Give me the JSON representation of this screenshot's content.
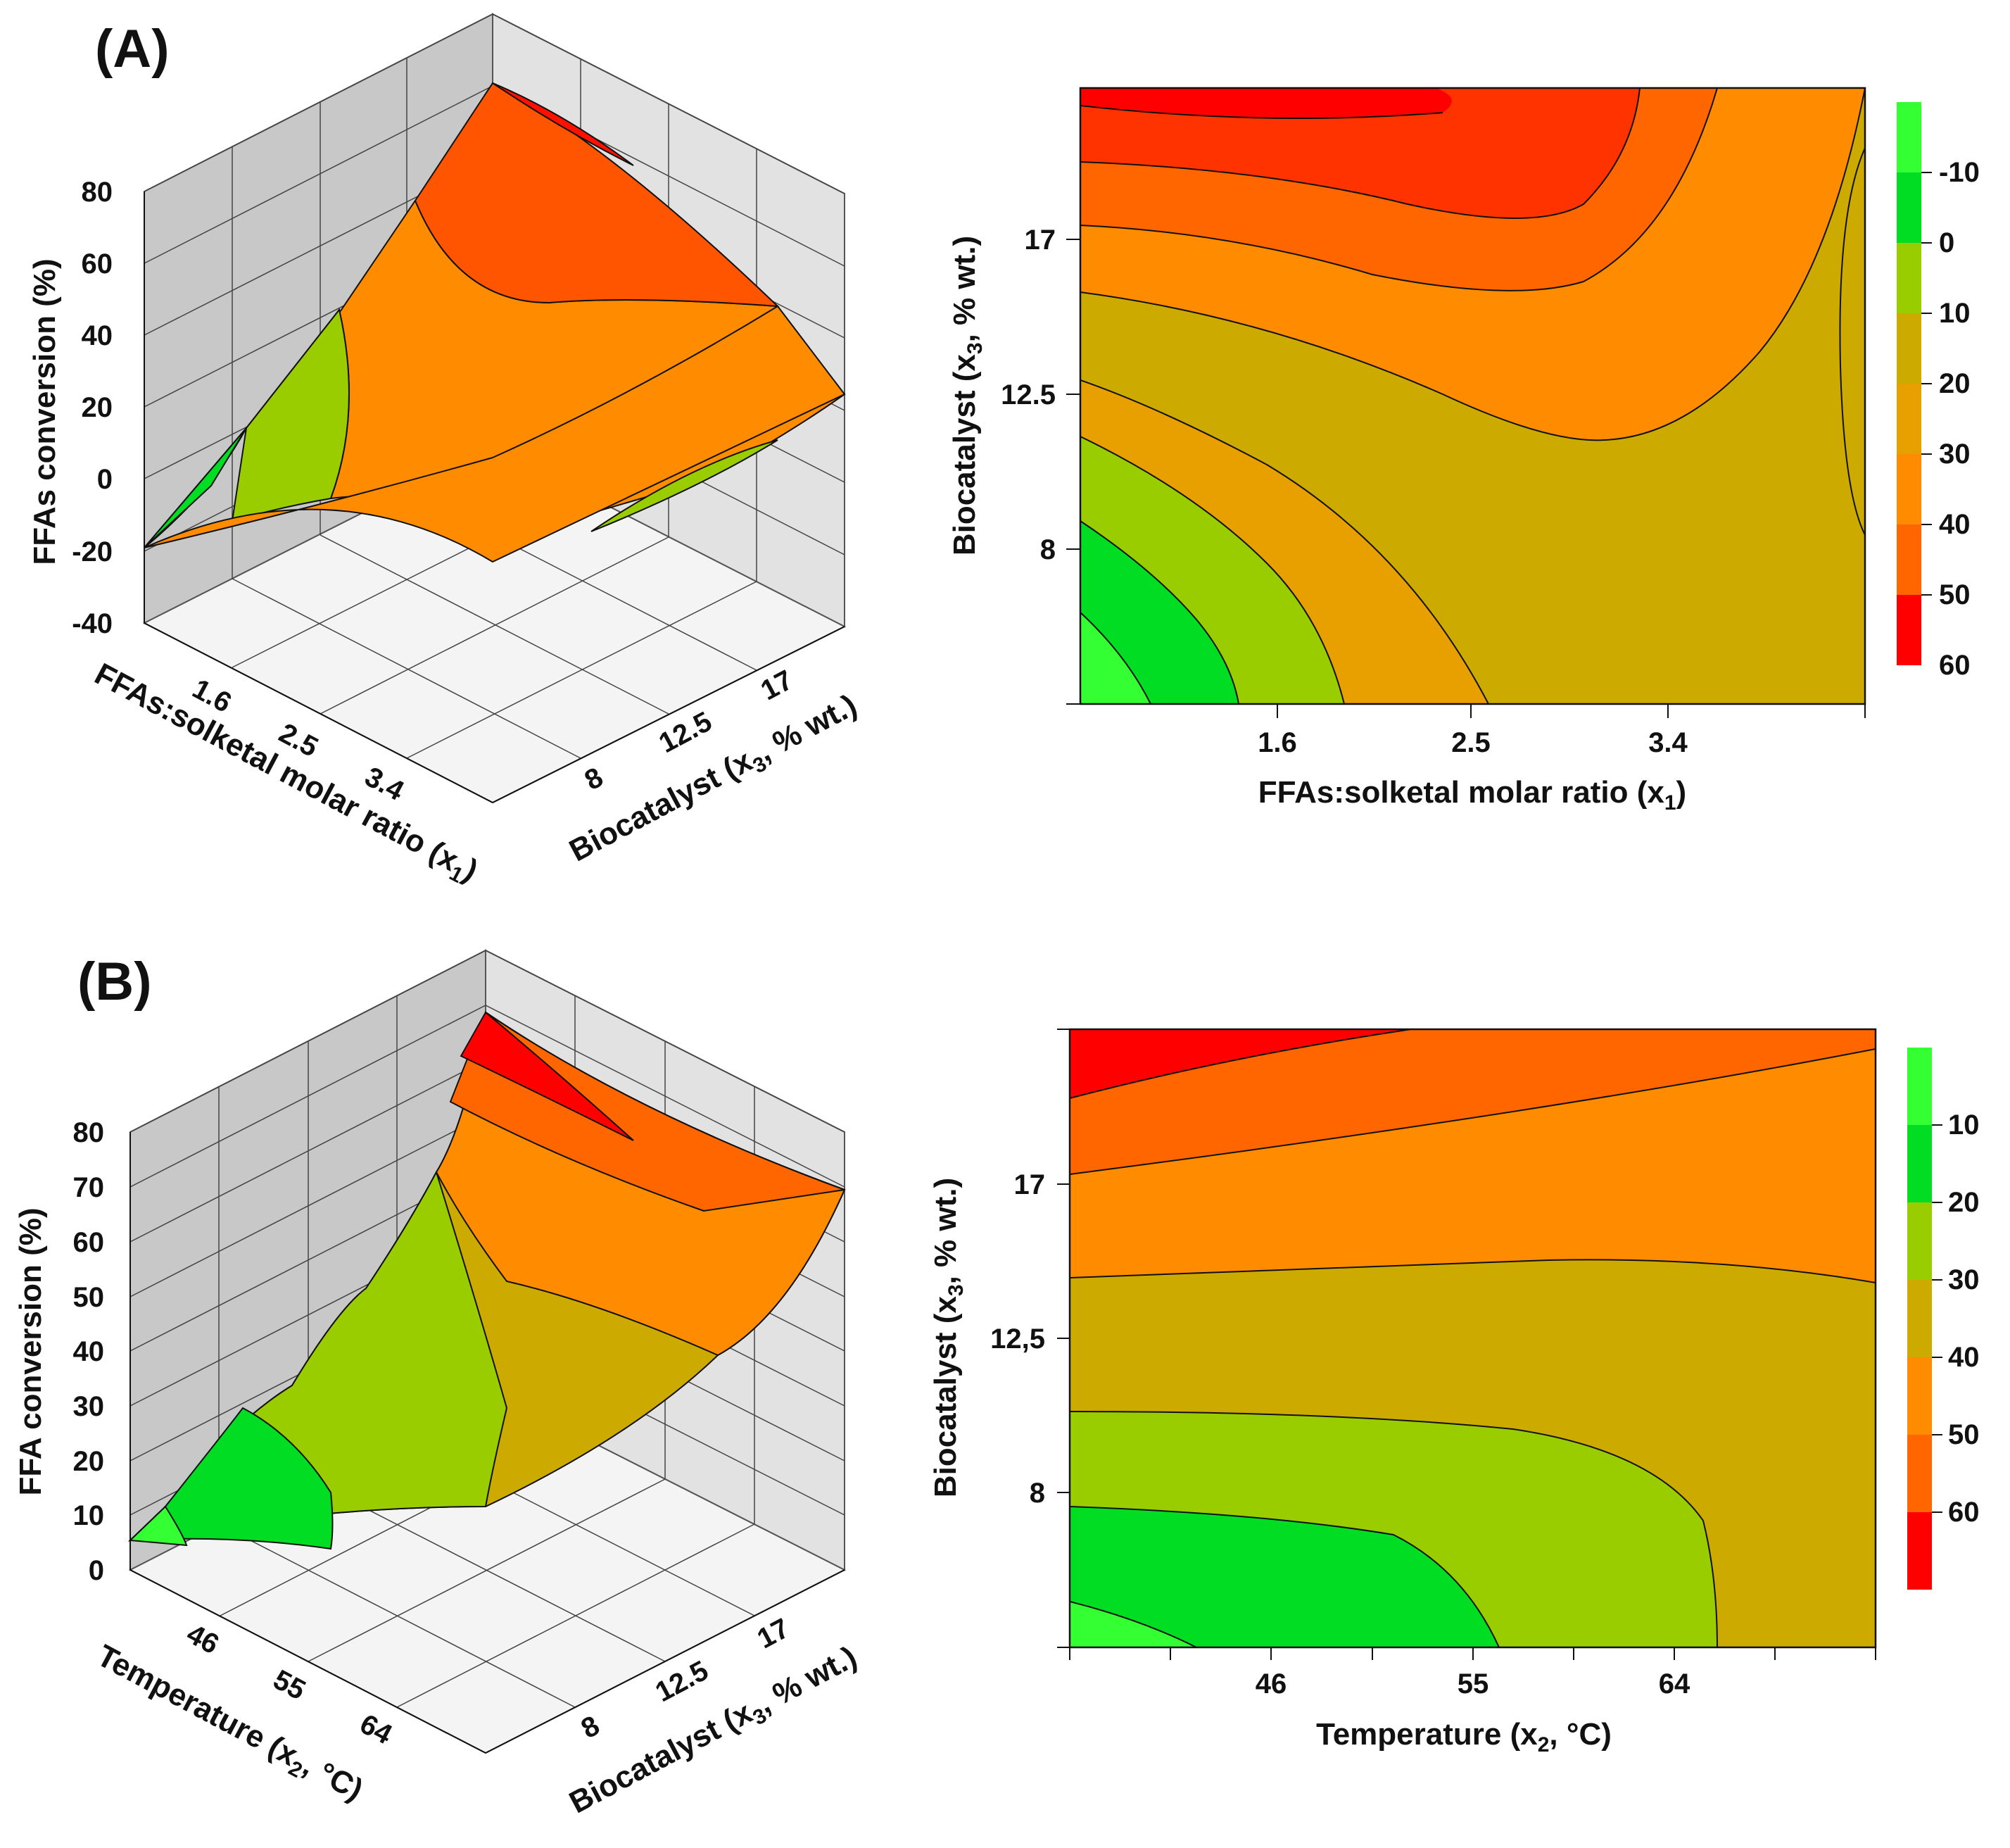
{
  "chart_data": [
    {
      "panel": "(A)",
      "type": "surface3d",
      "zlabel": "FFAs conversion (%)",
      "zticks": [
        "80",
        "60",
        "40",
        "20",
        "0",
        "-20",
        "-40"
      ],
      "xlabel": "FFAs:solketal molar ratio (x1)",
      "xticks": [
        "1.6",
        "2.5",
        "3.4"
      ],
      "ylabel": "Biocatalyst (x3, % wt.)",
      "yticks": [
        "8",
        "12.5",
        "17"
      ],
      "zrange": [
        -40,
        80
      ]
    },
    {
      "panel": "(A)",
      "type": "contour",
      "xlabel": "FFAs:solketal molar ratio (x1)",
      "xticks": [
        "1.6",
        "2.5",
        "3.4"
      ],
      "ylabel": "Biocatalyst (x3, % wt.)",
      "yticks": [
        "17",
        "12.5",
        "8"
      ],
      "colorbar_ticks": [
        "-10",
        "0",
        "10",
        "20",
        "30",
        "40",
        "50",
        "60"
      ],
      "levels": [
        -10,
        0,
        10,
        20,
        30,
        40,
        50,
        60
      ]
    },
    {
      "panel": "(B)",
      "type": "surface3d",
      "zlabel": "FFA conversion (%)",
      "zticks": [
        "80",
        "70",
        "60",
        "50",
        "40",
        "30",
        "20",
        "10",
        "0"
      ],
      "xlabel": "Temperature (x2, °C)",
      "xticks": [
        "46",
        "55",
        "64"
      ],
      "ylabel": "Biocatalyst (x3, % wt.)",
      "yticks": [
        "8",
        "12.5",
        "17"
      ],
      "zrange": [
        0,
        80
      ]
    },
    {
      "panel": "(B)",
      "type": "contour",
      "xlabel": "Temperature (x2, °C)",
      "xticks": [
        "46",
        "55",
        "64"
      ],
      "ylabel": "Biocatalyst (x3, % wt.)",
      "yticks": [
        "17",
        "12,5",
        "8"
      ],
      "colorbar_ticks": [
        "10",
        "20",
        "30",
        "40",
        "50",
        "60"
      ],
      "levels": [
        10,
        20,
        30,
        40,
        50,
        60
      ]
    }
  ],
  "labels": {
    "panel_a": "(A)",
    "panel_b": "(B)",
    "a3d_zlabel": "FFAs conversion (%)",
    "a3d_xlabel": "FFAs:solketal molar ratio (x",
    "a3d_xlabel_sub": "1",
    "a3d_xlabel_end": ")",
    "a3d_ylabel": "Biocatalyst (x",
    "a3d_ylabel_sub": "3",
    "a3d_ylabel_end": ", % wt.)",
    "ac_xlabel": "FFAs:solketal molar ratio (x",
    "ac_xlabel_sub": "1",
    "ac_xlabel_end": ")",
    "ac_ylabel": "Biocatalyst (x",
    "ac_ylabel_sub": "3",
    "ac_ylabel_end": ", % wt.)",
    "b3d_zlabel": "FFA conversion (%)",
    "b3d_xlabel": "Temperature (x",
    "b3d_xlabel_sub": "2",
    "b3d_xlabel_end": ",  °C)",
    "b3d_ylabel": "Biocatalyst (x",
    "b3d_ylabel_sub": "3",
    "b3d_ylabel_end": ", % wt.)",
    "bc_xlabel": "Temperature (x",
    "bc_xlabel_sub": "2",
    "bc_xlabel_end": ",  °C)",
    "bc_ylabel": "Biocatalyst (x",
    "bc_ylabel_sub": "3",
    "bc_ylabel_end": ", % wt.)"
  },
  "colors": {
    "level_neg": "#33ff33",
    "level_0": "#00dd22",
    "level_10": "#9acd00",
    "level_20": "#ccaa00",
    "level_30": "#e8a000",
    "level_40": "#ff8c00",
    "level_50": "#ff6600",
    "level_60": "#ff3300",
    "level_70": "#ff0000",
    "wall_left": "#c8c8c8",
    "wall_right": "#e2e2e2",
    "floor": "#f3f3f3"
  }
}
